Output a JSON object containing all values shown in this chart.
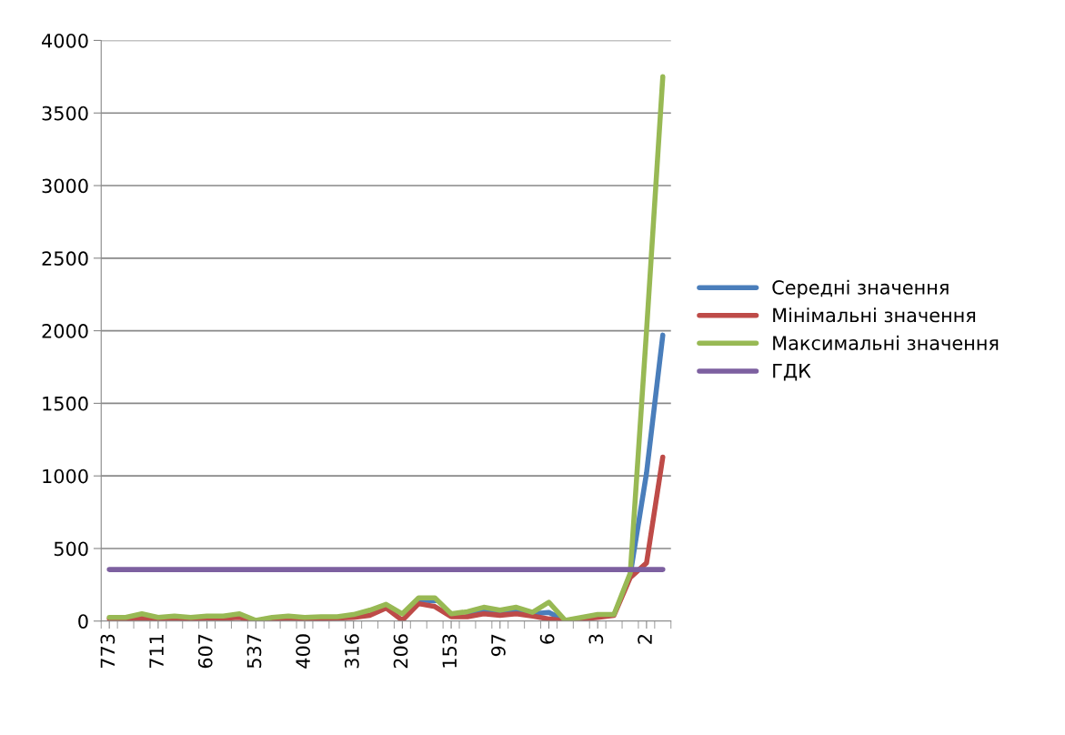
{
  "chart_data": {
    "type": "line",
    "categories": [
      "773",
      null,
      null,
      "711",
      null,
      null,
      "607",
      null,
      null,
      "537",
      null,
      null,
      "400",
      null,
      null,
      "316",
      null,
      null,
      "206",
      null,
      null,
      "153",
      null,
      null,
      "97",
      null,
      null,
      "6",
      null,
      null,
      "3",
      null,
      null,
      "2",
      null
    ],
    "series": [
      {
        "name": "Середні значення",
        "color": "#4a7ebb",
        "values": [
          null,
          null,
          null,
          null,
          null,
          null,
          null,
          null,
          null,
          null,
          null,
          null,
          null,
          null,
          null,
          null,
          null,
          null,
          null,
          145,
          140,
          null,
          55,
          80,
          65,
          80,
          50,
          60,
          5,
          null,
          null,
          null,
          320,
          1020,
          1970
        ]
      },
      {
        "name": "Мінімальні значення",
        "color": "#be4b48",
        "values": [
          15,
          15,
          20,
          15,
          20,
          15,
          20,
          20,
          25,
          0,
          15,
          20,
          15,
          15,
          20,
          25,
          40,
          90,
          5,
          120,
          100,
          30,
          30,
          50,
          40,
          50,
          35,
          15,
          0,
          15,
          25,
          40,
          300,
          400,
          1130
        ]
      },
      {
        "name": "Максимальні значення",
        "color": "#98b954",
        "values": [
          25,
          25,
          50,
          25,
          35,
          25,
          35,
          35,
          50,
          5,
          25,
          35,
          25,
          30,
          30,
          45,
          75,
          115,
          50,
          160,
          160,
          50,
          65,
          95,
          75,
          95,
          60,
          130,
          5,
          25,
          45,
          45,
          330,
          2000,
          3750
        ]
      },
      {
        "name": "ГДК",
        "color": "#7d60a0",
        "values": [
          355,
          355,
          355,
          355,
          355,
          355,
          355,
          355,
          355,
          355,
          355,
          355,
          355,
          355,
          355,
          355,
          355,
          355,
          355,
          355,
          355,
          355,
          355,
          355,
          355,
          355,
          355,
          355,
          355,
          355,
          355,
          355,
          355,
          355,
          355
        ]
      }
    ],
    "ylim": [
      0,
      4000
    ],
    "yticks": [
      0,
      500,
      1000,
      1500,
      2000,
      2500,
      3000,
      3500,
      4000
    ],
    "grid": "y",
    "legend": "right",
    "marker": "none",
    "line_style": "solid"
  }
}
